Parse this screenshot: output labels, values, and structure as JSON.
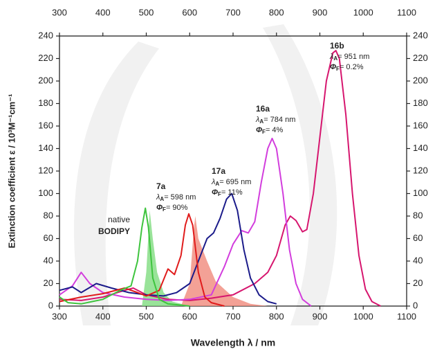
{
  "chart_data": {
    "type": "line",
    "y_label": "Extinction coefficient ε / 10³M⁻¹cm⁻¹",
    "x_label": "Wavelength λ / nm",
    "xlim": [
      300,
      1100
    ],
    "ylim": [
      0,
      240
    ],
    "xticks": [
      300,
      400,
      500,
      600,
      700,
      800,
      900,
      1000,
      1100
    ],
    "yticks": [
      0,
      20,
      40,
      60,
      80,
      100,
      120,
      140,
      160,
      180,
      200,
      220,
      240
    ],
    "series": [
      {
        "style": "area",
        "color": "#7fdc7f",
        "x": [
          490,
          500,
          508,
          515,
          525,
          540,
          560,
          600
        ],
        "values": [
          0,
          30,
          85,
          60,
          30,
          12,
          4,
          0
        ]
      },
      {
        "style": "area",
        "color": "#f08a7c",
        "x": [
          580,
          600,
          610,
          613,
          620,
          640,
          660,
          680,
          700,
          740,
          780
        ],
        "values": [
          0,
          20,
          70,
          80,
          60,
          40,
          22,
          15,
          8,
          2,
          0
        ]
      },
      {
        "style": "line",
        "color": "#d6156e",
        "x": [
          300,
          350,
          400,
          450,
          470,
          500,
          550,
          600,
          650,
          700,
          750,
          780,
          800,
          820,
          832,
          845,
          860,
          870,
          885,
          900,
          915,
          930,
          937,
          945,
          960,
          975,
          990,
          1005,
          1020,
          1040
        ],
        "values": [
          6,
          5,
          8,
          14,
          16,
          10,
          6,
          5,
          7,
          10,
          20,
          30,
          45,
          72,
          80,
          76,
          66,
          68,
          100,
          150,
          200,
          225,
          227,
          220,
          170,
          100,
          45,
          15,
          4,
          0
        ]
      },
      {
        "style": "line",
        "color": "#d23ddd",
        "x": [
          300,
          330,
          350,
          370,
          400,
          450,
          500,
          550,
          600,
          650,
          680,
          700,
          720,
          735,
          750,
          765,
          780,
          790,
          800,
          815,
          830,
          845,
          860,
          880
        ],
        "values": [
          10,
          18,
          30,
          20,
          12,
          8,
          6,
          5,
          6,
          10,
          35,
          55,
          67,
          65,
          75,
          110,
          140,
          149,
          140,
          100,
          50,
          20,
          6,
          0
        ]
      },
      {
        "style": "line",
        "color": "#1b1b8a",
        "x": [
          300,
          330,
          350,
          385,
          420,
          460,
          500,
          540,
          570,
          600,
          620,
          640,
          655,
          670,
          685,
          697,
          710,
          725,
          740,
          760,
          780,
          800
        ],
        "values": [
          14,
          17,
          12,
          20,
          16,
          12,
          10,
          9,
          12,
          20,
          40,
          60,
          65,
          78,
          95,
          100,
          85,
          50,
          25,
          10,
          4,
          2
        ]
      },
      {
        "style": "line",
        "color": "#e01b1b",
        "x": [
          300,
          350,
          400,
          450,
          480,
          500,
          530,
          550,
          565,
          580,
          590,
          598,
          607,
          620,
          635,
          650,
          680
        ],
        "values": [
          4,
          8,
          11,
          16,
          12,
          9,
          14,
          33,
          28,
          45,
          72,
          82,
          72,
          30,
          8,
          3,
          0
        ]
      },
      {
        "style": "line",
        "color": "#3ec43e",
        "x": [
          300,
          320,
          350,
          400,
          440,
          465,
          480,
          490,
          498,
          505,
          515,
          530,
          550,
          600
        ],
        "values": [
          8,
          3,
          2,
          6,
          14,
          18,
          40,
          70,
          87,
          70,
          25,
          6,
          2,
          0
        ]
      }
    ],
    "annotations": [
      {
        "lines": [
          "native",
          "BODIPY"
        ]
      },
      {
        "label": "7a",
        "lines": [
          {
            "symbol": "λ",
            "sub": "A",
            "text": "= 598 nm"
          },
          {
            "symbol": "Φ",
            "sub": "F",
            "text": "= 90%"
          }
        ]
      },
      {
        "label": "17a",
        "lines": [
          {
            "symbol": "λ",
            "sub": "A",
            "text": "= 695 nm"
          },
          {
            "symbol": "Φ",
            "sub": "F",
            "text": "= 11%"
          }
        ]
      },
      {
        "label": "16a",
        "lines": [
          {
            "symbol": "λ",
            "sub": "A",
            "text": "= 784 nm"
          },
          {
            "symbol": "Φ",
            "sub": "F",
            "text": "= 4%"
          }
        ]
      },
      {
        "label": "16b",
        "lines": [
          {
            "symbol": "λ",
            "sub": "A",
            "text": "= 951 nm"
          },
          {
            "symbol": "Φ",
            "sub": "F",
            "text": "= 0.2%"
          }
        ]
      }
    ]
  }
}
